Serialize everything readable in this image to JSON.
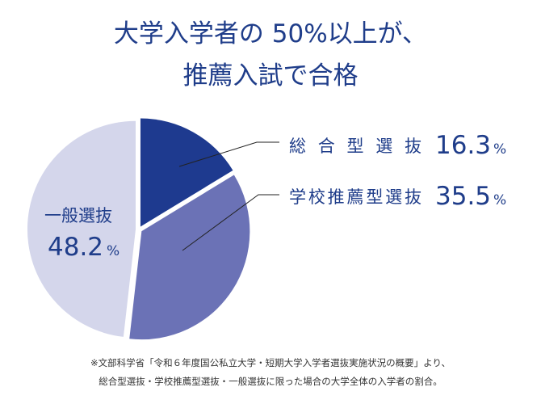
{
  "title_lines": [
    "大学入学者の 50%以上が、",
    "推薦入試で合格"
  ],
  "chart_data": {
    "type": "pie",
    "title": "大学入学者の 50%以上が、推薦入試で合格",
    "unit": "%",
    "slices": [
      {
        "label": "総合型選抜",
        "value": 16.3,
        "color": "#1e3a8f"
      },
      {
        "label": "学校推薦型選抜",
        "value": 35.5,
        "color": "#6b72b6"
      },
      {
        "label": "一般選抜",
        "value": 48.2,
        "color": "#d4d6eb"
      }
    ]
  },
  "labels": {
    "sogo": {
      "name": "総合型選抜",
      "value": "16.3",
      "unit": "%"
    },
    "suisen": {
      "name": "学校推薦型選抜",
      "value": "35.5",
      "unit": "%"
    },
    "ippan": {
      "name": "一般選抜",
      "value": "48.2",
      "unit": "%"
    }
  },
  "footnote_lines": [
    "※文部科学省「令和６年度国公私立大学・短期大学入学者選抜実施状況の概要」より、",
    "総合型選抜・学校推薦型選抜・一般選抜に限った場合の大学全体の入学者の割合。"
  ],
  "colors": {
    "text": "#1f3d8a",
    "leader_line": "#222222",
    "footnote": "#333333"
  }
}
